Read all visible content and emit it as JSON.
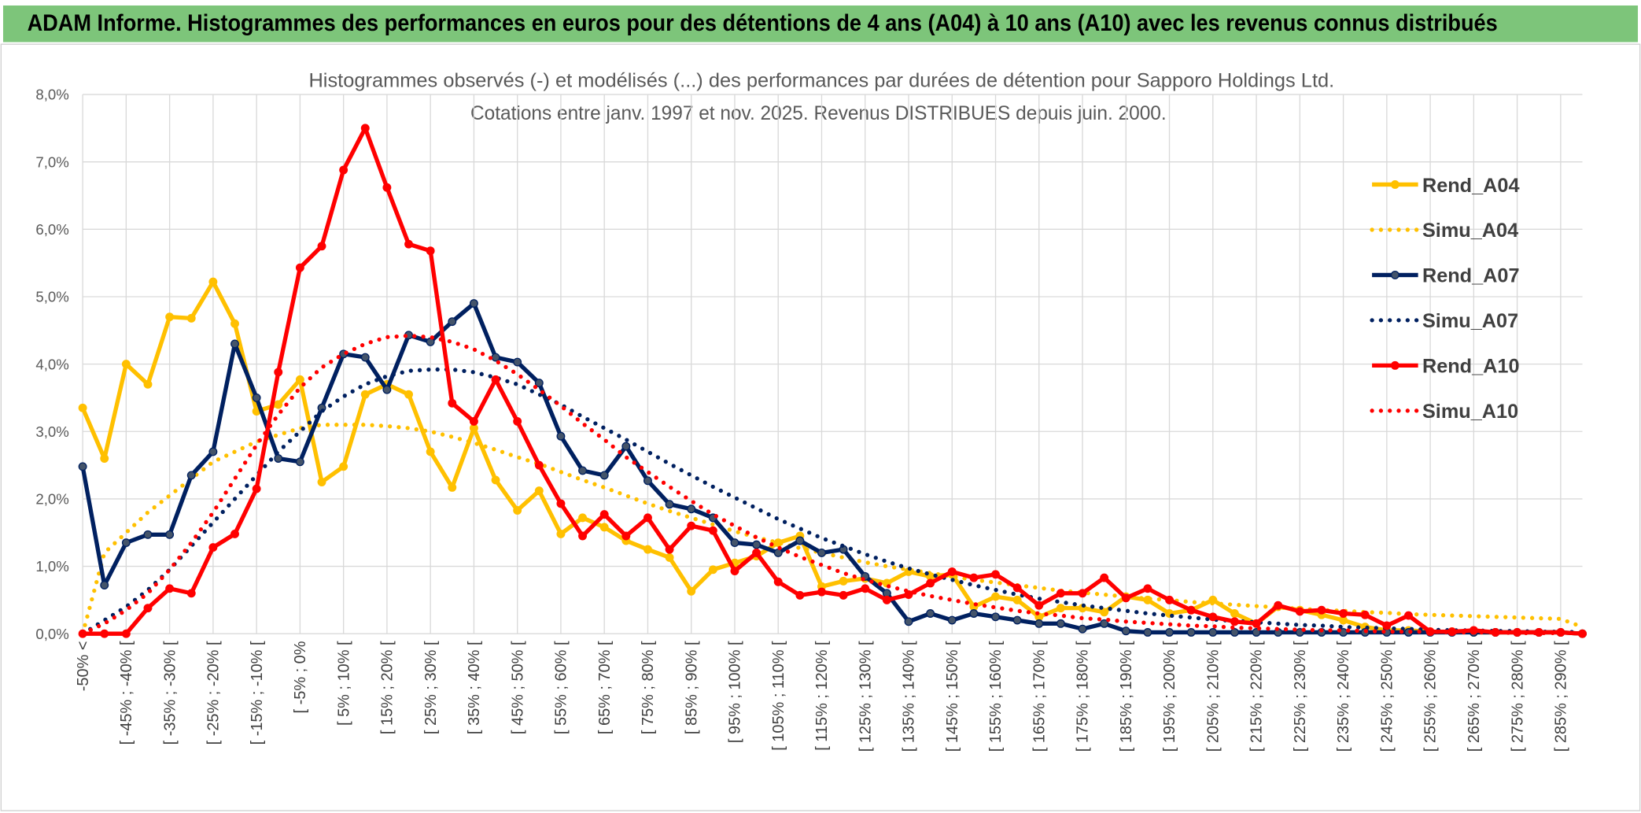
{
  "header": "ADAM Informe. Histogrammes des performances en euros pour des détentions de 4 ans (A04) à 10 ans (A10) avec les revenus connus distribués",
  "chart_data": {
    "type": "line",
    "title": "Histogrammes observés (-) et modélisés (...) des performances par durées de détention pour Sapporo Holdings Ltd.",
    "subtitle": "Cotations entre janv. 1997 et nov. 2025. Revenus DISTRIBUES depuis juin. 2000.",
    "categories": [
      "-50% <",
      null,
      "[ -45% ; -40% [",
      null,
      "[ -35% ; -30% [",
      null,
      "[ -25% ; -20% [",
      null,
      "[ -15% ; -10% [",
      null,
      "[ -5% ; 0%",
      null,
      "[ 5% ; 10% [",
      null,
      "[ 15% ; 20% [",
      null,
      "[ 25% ; 30% [",
      null,
      "[ 35% ; 40% [",
      null,
      "[ 45% ; 50% [",
      null,
      "[ 55% ; 60% [",
      null,
      "[ 65% ; 70% [",
      null,
      "[ 75% ; 80% [",
      null,
      "[ 85% ; 90% [",
      null,
      "[ 95% ; 100% [",
      null,
      "[ 105% ; 110% [",
      null,
      "[ 115% ; 120% [",
      null,
      "[ 125% ; 130% [",
      null,
      "[ 135% ; 140% [",
      null,
      "[ 145% ; 150% [",
      null,
      "[ 155% ; 160% [",
      null,
      "[ 165% ; 170% [",
      null,
      "[ 175% ; 180% [",
      null,
      "[ 185% ; 190% [",
      null,
      "[ 195% ; 200% [",
      null,
      "[ 205% ; 210% [",
      null,
      "[ 215% ; 220% [",
      null,
      "[ 225% ; 230% [",
      null,
      "[ 235% ; 240% [",
      null,
      "[ 245% ; 250% [",
      null,
      "[ 255% ; 260% [",
      null,
      "[ 265% ; 270% [",
      null,
      "[ 275% ; 280% [",
      null,
      "[ 285% ; 290% [",
      null
    ],
    "ylim": [
      0,
      8
    ],
    "yticks": [
      {
        "value": 0,
        "label": "0,0%"
      },
      {
        "value": 1,
        "label": "1,0%"
      },
      {
        "value": 2,
        "label": "2,0%"
      },
      {
        "value": 3,
        "label": "3,0%"
      },
      {
        "value": 4,
        "label": "4,0%"
      },
      {
        "value": 5,
        "label": "5,0%"
      },
      {
        "value": 6,
        "label": "6,0%"
      },
      {
        "value": 7,
        "label": "7,0%"
      },
      {
        "value": 8,
        "label": "8,0%"
      }
    ],
    "grid": true,
    "legend": "right",
    "series": [
      {
        "name": "Rend_A04",
        "color": "#FFC000",
        "style": "solid",
        "markers": true,
        "values": [
          3.35,
          2.6,
          4.0,
          3.7,
          4.7,
          4.68,
          5.22,
          4.6,
          3.3,
          3.4,
          3.77,
          2.25,
          2.48,
          3.55,
          3.7,
          3.55,
          2.7,
          2.17,
          3.05,
          2.28,
          1.83,
          2.12,
          1.48,
          1.72,
          1.58,
          1.38,
          1.25,
          1.13,
          0.63,
          0.95,
          1.05,
          1.15,
          1.35,
          1.45,
          0.7,
          0.78,
          0.82,
          0.75,
          0.92,
          0.85,
          0.88,
          0.4,
          0.55,
          0.5,
          0.25,
          0.38,
          0.38,
          0.32,
          0.55,
          0.5,
          0.3,
          0.35,
          0.5,
          0.3,
          0.15,
          0.4,
          0.35,
          0.28,
          0.2,
          0.1,
          0.05,
          0.05,
          0.03,
          0.03,
          0.02,
          0.02,
          0.02,
          0.02,
          0.02,
          0
        ]
      },
      {
        "name": "Simu_A04",
        "color": "#FFC000",
        "style": "dotted",
        "markers": false,
        "values": [
          0,
          1.2,
          1.5,
          1.8,
          2.05,
          2.3,
          2.55,
          2.7,
          2.85,
          2.95,
          3.05,
          3.1,
          3.1,
          3.1,
          3.08,
          3.05,
          3.0,
          2.92,
          2.83,
          2.73,
          2.62,
          2.52,
          2.4,
          2.28,
          2.17,
          2.05,
          1.93,
          1.82,
          1.72,
          1.62,
          1.52,
          1.43,
          1.35,
          1.27,
          1.2,
          1.13,
          1.06,
          1.0,
          0.95,
          0.9,
          0.85,
          0.8,
          0.76,
          0.72,
          0.68,
          0.64,
          0.61,
          0.58,
          0.55,
          0.52,
          0.5,
          0.47,
          0.45,
          0.43,
          0.41,
          0.39,
          0.37,
          0.35,
          0.34,
          0.32,
          0.31,
          0.29,
          0.28,
          0.27,
          0.26,
          0.25,
          0.24,
          0.23,
          0.22,
          0.1
        ]
      },
      {
        "name": "Rend_A07",
        "color": "#002060",
        "style": "solid",
        "markers": true,
        "values": [
          2.48,
          0.72,
          1.35,
          1.47,
          1.47,
          2.35,
          2.7,
          4.3,
          3.5,
          2.6,
          2.55,
          3.35,
          4.15,
          4.1,
          3.62,
          4.43,
          4.33,
          4.63,
          4.9,
          4.1,
          4.03,
          3.72,
          2.93,
          2.42,
          2.35,
          2.78,
          2.27,
          1.92,
          1.85,
          1.72,
          1.35,
          1.32,
          1.2,
          1.38,
          1.2,
          1.25,
          0.85,
          0.6,
          0.18,
          0.3,
          0.2,
          0.3,
          0.25,
          0.2,
          0.15,
          0.15,
          0.07,
          0.15,
          0.04,
          0.02,
          0.02,
          0.02,
          0.02,
          0.02,
          0.02,
          0.02,
          0.02,
          0.02,
          0.02,
          0.02,
          0.02,
          0.02,
          0.02,
          0.02,
          0.02,
          0.02,
          0.02,
          0.02,
          0.02,
          0
        ]
      },
      {
        "name": "Simu_A07",
        "color": "#002060",
        "style": "dotted",
        "markers": false,
        "values": [
          0,
          0.2,
          0.4,
          0.65,
          0.95,
          1.3,
          1.65,
          2.0,
          2.35,
          2.7,
          3.0,
          3.3,
          3.52,
          3.7,
          3.82,
          3.9,
          3.92,
          3.92,
          3.88,
          3.8,
          3.7,
          3.55,
          3.4,
          3.22,
          3.05,
          2.88,
          2.7,
          2.52,
          2.35,
          2.18,
          2.02,
          1.86,
          1.7,
          1.56,
          1.42,
          1.3,
          1.18,
          1.07,
          0.97,
          0.88,
          0.8,
          0.72,
          0.65,
          0.58,
          0.52,
          0.47,
          0.42,
          0.38,
          0.34,
          0.3,
          0.27,
          0.24,
          0.21,
          0.19,
          0.17,
          0.15,
          0.13,
          0.12,
          0.1,
          0.09,
          0.08,
          0.07,
          0.06,
          0.05,
          0.05,
          0.04,
          0.04,
          0.03,
          0.03,
          0.02
        ]
      },
      {
        "name": "Rend_A10",
        "color": "#FF0000",
        "style": "solid",
        "markers": true,
        "values": [
          0,
          0,
          0,
          0.38,
          0.67,
          0.6,
          1.28,
          1.48,
          2.15,
          3.88,
          5.43,
          5.75,
          6.88,
          7.5,
          6.62,
          5.78,
          5.68,
          3.42,
          3.15,
          3.77,
          3.15,
          2.5,
          1.93,
          1.45,
          1.77,
          1.45,
          1.72,
          1.25,
          1.6,
          1.53,
          0.93,
          1.2,
          0.77,
          0.57,
          0.62,
          0.57,
          0.67,
          0.5,
          0.58,
          0.75,
          0.92,
          0.83,
          0.88,
          0.68,
          0.42,
          0.6,
          0.6,
          0.83,
          0.53,
          0.67,
          0.5,
          0.35,
          0.25,
          0.18,
          0.15,
          0.42,
          0.33,
          0.35,
          0.3,
          0.28,
          0.12,
          0.27,
          0.03,
          0.03,
          0.05,
          0.02,
          0.02,
          0.02,
          0.02,
          0
        ]
      },
      {
        "name": "Simu_A10",
        "color": "#FF0000",
        "style": "dotted",
        "markers": false,
        "values": [
          0,
          0.15,
          0.35,
          0.6,
          0.95,
          1.35,
          1.8,
          2.3,
          2.8,
          3.25,
          3.65,
          3.95,
          4.15,
          4.3,
          4.4,
          4.42,
          4.4,
          4.33,
          4.22,
          4.05,
          3.85,
          3.62,
          3.38,
          3.12,
          2.88,
          2.62,
          2.4,
          2.18,
          1.97,
          1.77,
          1.6,
          1.43,
          1.28,
          1.14,
          1.02,
          0.9,
          0.8,
          0.71,
          0.63,
          0.56,
          0.5,
          0.44,
          0.39,
          0.34,
          0.3,
          0.27,
          0.23,
          0.21,
          0.18,
          0.16,
          0.14,
          0.12,
          0.11,
          0.09,
          0.08,
          0.07,
          0.06,
          0.05,
          0.05,
          0.04,
          0.03,
          0.03,
          0.03,
          0.02,
          0.02,
          0.02,
          0.01,
          0.01,
          0.01,
          0.01
        ]
      }
    ]
  }
}
